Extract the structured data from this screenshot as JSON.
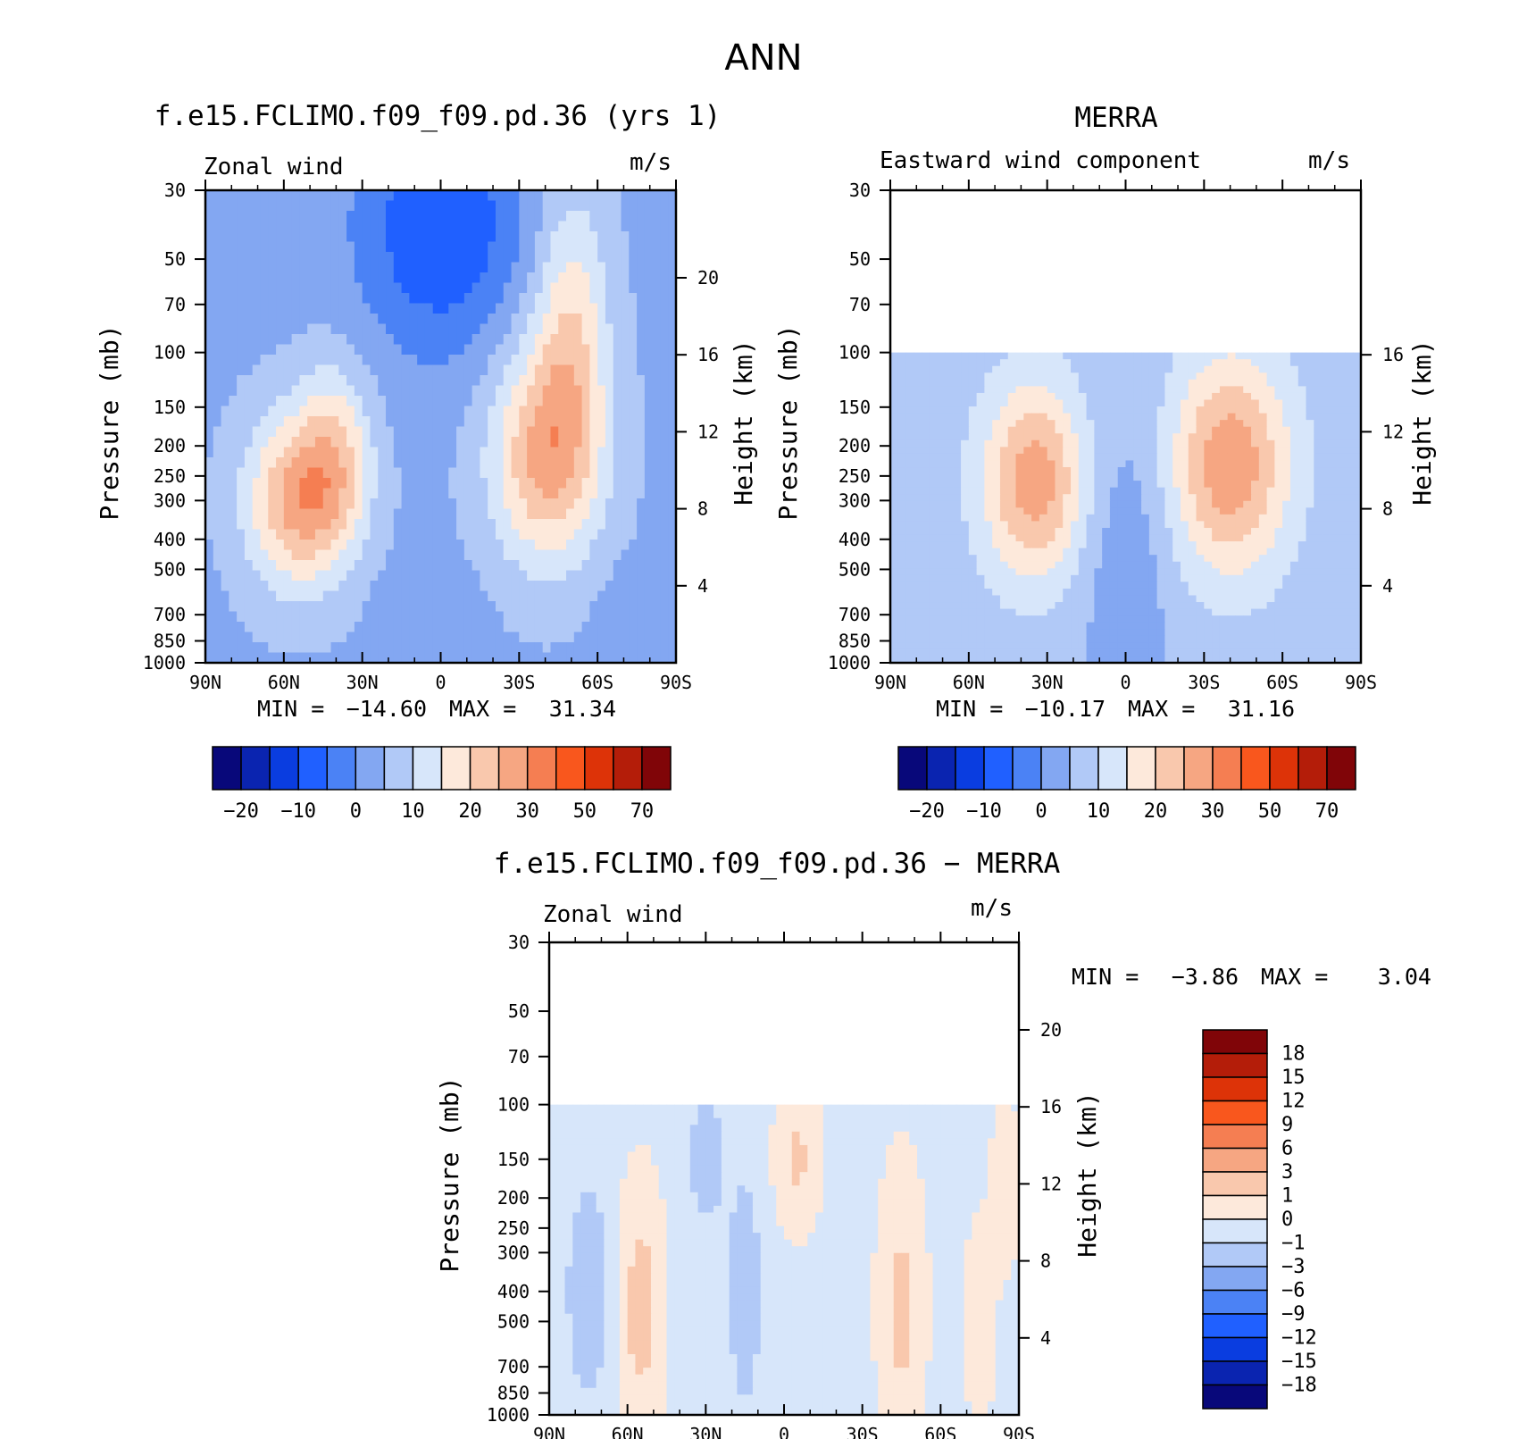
{
  "page_title": "ANN",
  "palettes": {
    "wind": [
      "#08087a",
      "#0a24b0",
      "#0a3de0",
      "#2060ff",
      "#4b82f5",
      "#83a7f2",
      "#b1c9f7",
      "#d7e6fa",
      "#fde9db",
      "#f9c8ad",
      "#f6a682",
      "#f57e52",
      "#f9571d",
      "#dd3308",
      "#b41d09",
      "#800508"
    ],
    "diff": [
      "#08087a",
      "#0a24b0",
      "#0a3de0",
      "#2060ff",
      "#4b82f5",
      "#83a7f2",
      "#b1c9f7",
      "#d7e6fa",
      "#fde9db",
      "#f9c8ad",
      "#f6a682",
      "#f57e52",
      "#f9571d",
      "#dd3308",
      "#b41d09",
      "#800508"
    ]
  },
  "chart_data": [
    {
      "type": "heatmap",
      "id": "model",
      "title": "f.e15.FCLIMO.f09_f09.pd.36 (yrs 1)",
      "left_label": "Zonal wind",
      "units": "m/s",
      "xlabel": "",
      "ylabel": "Pressure (mb)",
      "ylabel_right": "Height (km)",
      "x_ticks": [
        "90N",
        "60N",
        "30N",
        "0",
        "30S",
        "60S",
        "90S"
      ],
      "p_ticks": [
        30,
        50,
        70,
        100,
        150,
        200,
        250,
        300,
        400,
        500,
        700,
        850,
        1000
      ],
      "ylim": [
        1000,
        30
      ],
      "height_ticks": [
        4,
        8,
        12,
        16,
        20
      ],
      "data_top_p": 30,
      "min_label": "MIN =",
      "min_value": "−14.60",
      "max_label": "MAX =",
      "max_value": "31.34",
      "colorbar_labels": [
        "−20",
        "−10",
        "0",
        "10",
        "20",
        "30",
        "50",
        "70"
      ],
      "field": {
        "features": [
          {
            "lat": 55,
            "p": 300,
            "sigma_lat": 14,
            "sigma_z": 3.2,
            "amp": 22
          },
          {
            "lat": 40,
            "p": 215,
            "sigma_lat": 10,
            "sigma_z": 3.4,
            "amp": 13
          },
          {
            "lat": -40,
            "p": 215,
            "sigma_lat": 15,
            "sigma_z": 4.0,
            "amp": 22
          },
          {
            "lat": -50,
            "p": 80,
            "sigma_lat": 10,
            "sigma_z": 5.0,
            "amp": 14
          },
          {
            "lat": 0,
            "p": 40,
            "sigma_lat": 22,
            "sigma_z": 4.5,
            "amp": -14
          },
          {
            "lat": 5,
            "p": 750,
            "sigma_lat": 12,
            "sigma_z": 2.0,
            "amp": -4
          },
          {
            "lat": -75,
            "p": 800,
            "sigma_lat": 10,
            "sigma_z": 2.0,
            "amp": -4
          }
        ],
        "base": -1
      }
    },
    {
      "type": "heatmap",
      "id": "obs",
      "title": "MERRA",
      "left_label": "Eastward wind component",
      "units": "m/s",
      "xlabel": "",
      "ylabel": "Pressure (mb)",
      "ylabel_right": "Height (km)",
      "x_ticks": [
        "90N",
        "60N",
        "30N",
        "0",
        "30S",
        "60S",
        "90S"
      ],
      "p_ticks": [
        30,
        50,
        70,
        100,
        150,
        200,
        250,
        300,
        400,
        500,
        700,
        850,
        1000
      ],
      "ylim": [
        1000,
        30
      ],
      "height_ticks": [
        4,
        8,
        12,
        16
      ],
      "data_top_p": 100,
      "min_label": "MIN =",
      "min_value": "−10.17",
      "max_label": "MAX =",
      "max_value": "31.16",
      "colorbar_labels": [
        "−20",
        "−10",
        "0",
        "10",
        "20",
        "30",
        "50",
        "70"
      ],
      "field": {
        "features": [
          {
            "lat": 35,
            "p": 260,
            "sigma_lat": 14,
            "sigma_z": 3.6,
            "amp": 21
          },
          {
            "lat": -40,
            "p": 230,
            "sigma_lat": 16,
            "sigma_z": 4.0,
            "amp": 22
          },
          {
            "lat": 0,
            "p": 500,
            "sigma_lat": 12,
            "sigma_z": 6.0,
            "amp": -6
          }
        ],
        "base": 2
      }
    },
    {
      "type": "heatmap",
      "id": "diff",
      "title": "f.e15.FCLIMO.f09_f09.pd.36 − MERRA",
      "left_label": "Zonal wind",
      "units": "m/s",
      "xlabel": "",
      "ylabel": "Pressure (mb)",
      "ylabel_right": "Height (km)",
      "x_ticks": [
        "90N",
        "60N",
        "30N",
        "0",
        "30S",
        "60S",
        "90S"
      ],
      "p_ticks": [
        30,
        50,
        70,
        100,
        150,
        200,
        250,
        300,
        400,
        500,
        700,
        850,
        1000
      ],
      "ylim": [
        1000,
        30
      ],
      "height_ticks": [
        4,
        8,
        12,
        16,
        20
      ],
      "data_top_p": 100,
      "min_label": "MIN =",
      "min_value": "−3.86",
      "max_label": "MAX =",
      "max_value": "3.04",
      "colorbar_labels": [
        "18",
        "15",
        "12",
        "9",
        "6",
        "3",
        "1",
        "0",
        "−1",
        "−3",
        "−6",
        "−9",
        "−12",
        "−15",
        "−18"
      ],
      "field": {
        "features": [
          {
            "lat": 75,
            "p": 400,
            "sigma_lat": 6,
            "sigma_z": 4.0,
            "amp": -1.6
          },
          {
            "lat": 55,
            "p": 450,
            "sigma_lat": 6,
            "sigma_z": 4.5,
            "amp": 1.8
          },
          {
            "lat": 30,
            "p": 150,
            "sigma_lat": 5,
            "sigma_z": 2.5,
            "amp": -1.4
          },
          {
            "lat": 15,
            "p": 400,
            "sigma_lat": 5,
            "sigma_z": 5.0,
            "amp": -1.3
          },
          {
            "lat": -5,
            "p": 150,
            "sigma_lat": 6,
            "sigma_z": 2.5,
            "amp": 1.5
          },
          {
            "lat": -45,
            "p": 450,
            "sigma_lat": 6,
            "sigma_z": 5.0,
            "amp": 1.6
          },
          {
            "lat": -75,
            "p": 500,
            "sigma_lat": 4,
            "sigma_z": 3.5,
            "amp": 1.2
          },
          {
            "lat": -85,
            "p": 180,
            "sigma_lat": 4,
            "sigma_z": 3.0,
            "amp": 1.0
          }
        ],
        "base": -0.3
      }
    }
  ]
}
